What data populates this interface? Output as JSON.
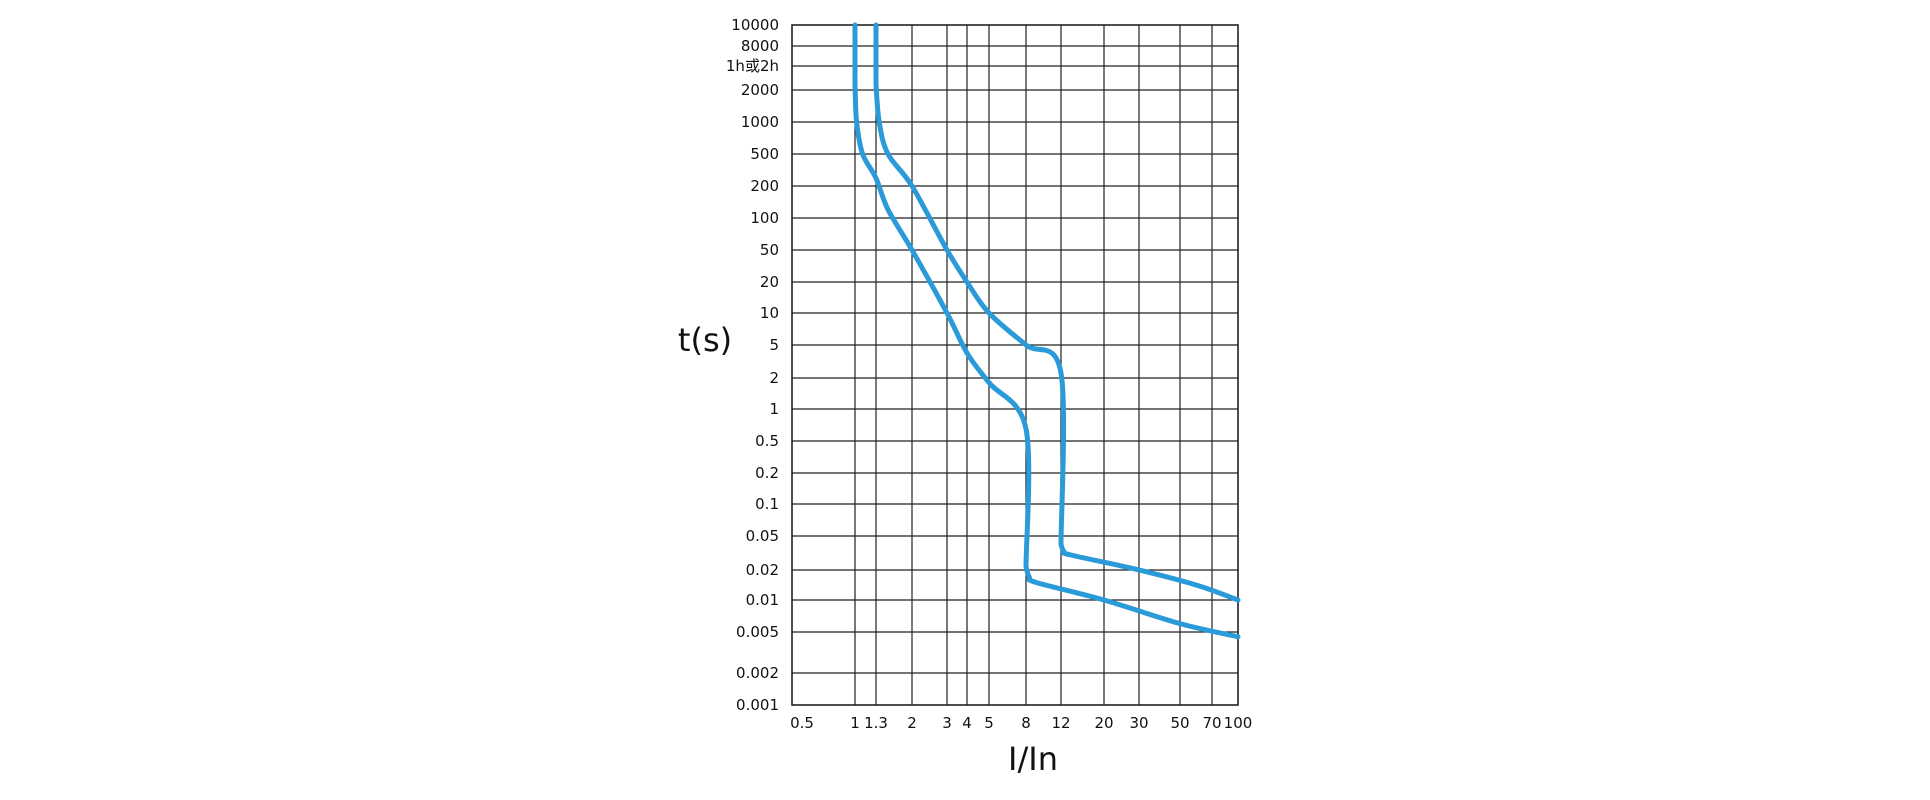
{
  "chart_data": {
    "type": "line",
    "title": "",
    "xlabel": "I/In",
    "ylabel": "t(s)",
    "x_scale": "log",
    "y_scale": "log",
    "xlim": [
      0.5,
      100
    ],
    "ylim": [
      0.001,
      10000
    ],
    "grid": true,
    "x_ticks": [
      {
        "value": 0.5,
        "label": "0.5"
      },
      {
        "value": 1,
        "label": "1"
      },
      {
        "value": 1.3,
        "label": "1.3"
      },
      {
        "value": 2,
        "label": "2"
      },
      {
        "value": 3,
        "label": "3"
      },
      {
        "value": 4,
        "label": "4"
      },
      {
        "value": 5,
        "label": "5"
      },
      {
        "value": 8,
        "label": "8"
      },
      {
        "value": 12,
        "label": "12"
      },
      {
        "value": 20,
        "label": "20"
      },
      {
        "value": 30,
        "label": "30"
      },
      {
        "value": 50,
        "label": "50"
      },
      {
        "value": 70,
        "label": "70"
      },
      {
        "value": 100,
        "label": "100"
      }
    ],
    "y_ticks": [
      {
        "value": 10000,
        "label": "10000"
      },
      {
        "value": 8000,
        "label": "8000"
      },
      {
        "value": 5000,
        "label": "1h或2h"
      },
      {
        "value": 2000,
        "label": "2000"
      },
      {
        "value": 1000,
        "label": "1000"
      },
      {
        "value": 500,
        "label": "500"
      },
      {
        "value": 200,
        "label": "200"
      },
      {
        "value": 100,
        "label": "100"
      },
      {
        "value": 50,
        "label": "50"
      },
      {
        "value": 20,
        "label": "20"
      },
      {
        "value": 10,
        "label": "10"
      },
      {
        "value": 5,
        "label": "5"
      },
      {
        "value": 2,
        "label": "2"
      },
      {
        "value": 1,
        "label": "1"
      },
      {
        "value": 0.5,
        "label": "0.5"
      },
      {
        "value": 0.2,
        "label": "0.2"
      },
      {
        "value": 0.1,
        "label": "0.1"
      },
      {
        "value": 0.05,
        "label": "0.05"
      },
      {
        "value": 0.02,
        "label": "0.02"
      },
      {
        "value": 0.01,
        "label": "0.01"
      },
      {
        "value": 0.005,
        "label": "0.005"
      },
      {
        "value": 0.002,
        "label": "0.002"
      },
      {
        "value": 0.001,
        "label": "0.001"
      }
    ],
    "series": [
      {
        "color": "#2a9ad8",
        "points": [
          [
            1.0,
            10000
          ],
          [
            1.0,
            2500
          ],
          [
            1.02,
            1000
          ],
          [
            1.1,
            500
          ],
          [
            1.3,
            250
          ],
          [
            1.5,
            120
          ],
          [
            2.0,
            50
          ],
          [
            3.0,
            10
          ],
          [
            4.0,
            4
          ],
          [
            5.0,
            1.8
          ],
          [
            8.0,
            0.65
          ],
          [
            8.0,
            0.022
          ],
          [
            8.3,
            0.017
          ],
          [
            9.0,
            0.015
          ],
          [
            20.0,
            0.01
          ],
          [
            50.0,
            0.006
          ],
          [
            100.0,
            0.0045
          ]
        ]
      },
      {
        "color": "#2a9ad8",
        "points": [
          [
            1.3,
            10000
          ],
          [
            1.3,
            2500
          ],
          [
            1.35,
            1000
          ],
          [
            1.5,
            500
          ],
          [
            2.0,
            200
          ],
          [
            3.0,
            50
          ],
          [
            4.0,
            20
          ],
          [
            5.0,
            10
          ],
          [
            8.0,
            5
          ],
          [
            12.0,
            2.3
          ],
          [
            12.0,
            0.04
          ],
          [
            12.4,
            0.033
          ],
          [
            13.5,
            0.03
          ],
          [
            30.0,
            0.02
          ],
          [
            60.0,
            0.014
          ],
          [
            100.0,
            0.01
          ]
        ]
      }
    ]
  }
}
